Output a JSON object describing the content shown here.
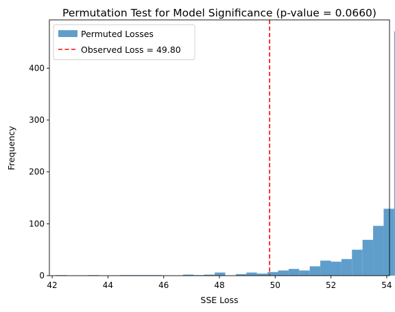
{
  "chart_data": {
    "type": "bar",
    "subtype": "histogram",
    "title": "Permutation Test for Model Significance (p-value = 0.0660)",
    "xlabel": "SSE Loss",
    "ylabel": "Frequency",
    "xlim": [
      41.9,
      54.1
    ],
    "ylim": [
      0,
      493
    ],
    "xticks": [
      42,
      44,
      46,
      48,
      50,
      52,
      54
    ],
    "yticks": [
      0,
      100,
      200,
      300,
      400
    ],
    "bin_start": 42.15,
    "bin_width": 0.3787,
    "series": [
      {
        "name": "Permuted Losses",
        "color": "#5f9ecb",
        "values": [
          1,
          0,
          0,
          1,
          0,
          0,
          1,
          1,
          1,
          1,
          0,
          0,
          2,
          1,
          2,
          6,
          0,
          3,
          6,
          4,
          7,
          10,
          13,
          10,
          18,
          29,
          27,
          32,
          50,
          69,
          96,
          129,
          471
        ]
      }
    ],
    "observed_line": {
      "label": "Observed Loss = 49.80",
      "value": 49.8,
      "color": "#ff0000"
    },
    "legend": {
      "position": "top-left",
      "entries": [
        "Permuted Losses",
        "Observed Loss = 49.80"
      ]
    },
    "grid": false
  }
}
